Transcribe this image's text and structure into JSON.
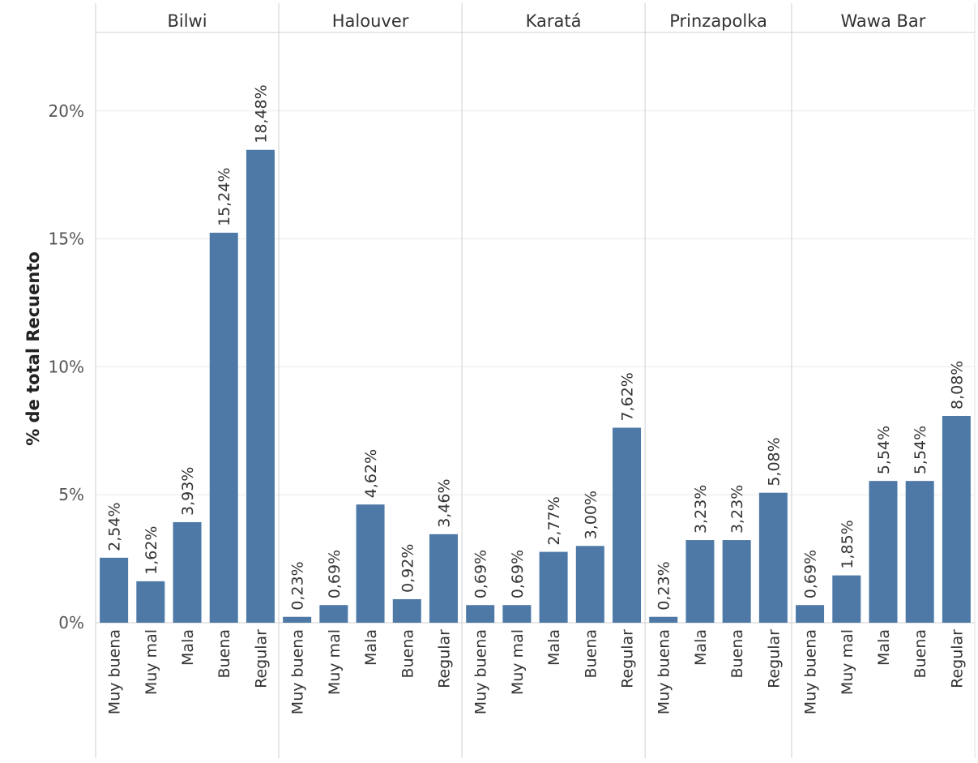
{
  "chart_data": {
    "type": "bar",
    "ylabel": "% de total Recuento",
    "ylim": [
      0,
      23
    ],
    "yticks": [
      0,
      5,
      10,
      15,
      20
    ],
    "ytick_labels": [
      "0%",
      "5%",
      "10%",
      "15%",
      "20%"
    ],
    "grid": true,
    "bar_color": "#4e79a7",
    "panels": [
      {
        "name": "Bilwi",
        "categories": [
          "Muy buena",
          "Muy mal",
          "Mala",
          "Buena",
          "Regular"
        ],
        "values": [
          2.54,
          1.62,
          3.93,
          15.24,
          18.48
        ],
        "labels": [
          "2,54%",
          "1,62%",
          "3,93%",
          "15,24%",
          "18,48%"
        ]
      },
      {
        "name": "Halouver",
        "categories": [
          "Muy buena",
          "Muy mal",
          "Mala",
          "Buena",
          "Regular"
        ],
        "values": [
          0.23,
          0.69,
          4.62,
          0.92,
          3.46
        ],
        "labels": [
          "0,23%",
          "0,69%",
          "4,62%",
          "0,92%",
          "3,46%"
        ]
      },
      {
        "name": "Karatá",
        "categories": [
          "Muy buena",
          "Muy mal",
          "Mala",
          "Buena",
          "Regular"
        ],
        "values": [
          0.69,
          0.69,
          2.77,
          3.0,
          7.62
        ],
        "labels": [
          "0,69%",
          "0,69%",
          "2,77%",
          "3,00%",
          "7,62%"
        ]
      },
      {
        "name": "Prinzapolka",
        "categories": [
          "Muy buena",
          "Mala",
          "Buena",
          "Regular"
        ],
        "values": [
          0.23,
          3.23,
          3.23,
          5.08
        ],
        "labels": [
          "0,23%",
          "3,23%",
          "3,23%",
          "5,08%"
        ]
      },
      {
        "name": "Wawa Bar",
        "categories": [
          "Muy buena",
          "Muy mal",
          "Mala",
          "Buena",
          "Regular"
        ],
        "values": [
          0.69,
          1.85,
          5.54,
          5.54,
          8.08
        ],
        "labels": [
          "0,69%",
          "1,85%",
          "5,54%",
          "5,54%",
          "8,08%"
        ]
      }
    ]
  }
}
